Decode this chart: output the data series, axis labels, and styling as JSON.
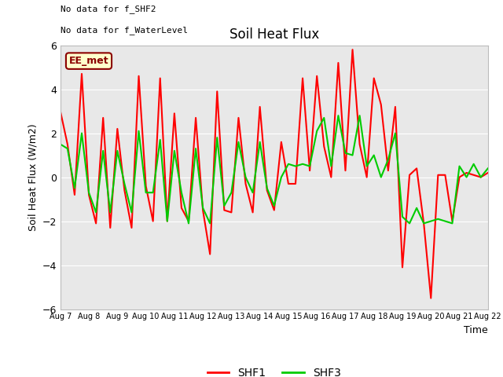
{
  "title": "Soil Heat Flux",
  "ylabel": "Soil Heat Flux (W/m2)",
  "xlabel": "Time",
  "ylim": [
    -6,
    6
  ],
  "background_color": "#e8e8e8",
  "fig_background": "#ffffff",
  "annotation_line1": "No data for f_SHF2",
  "annotation_line2": "No data for f_WaterLevel",
  "legend_box_label": "EE_met",
  "legend_box_color": "#ffffcc",
  "legend_box_edge": "#8B0000",
  "x_tick_labels": [
    "Aug 7",
    "Aug 8",
    "Aug 9",
    "Aug 10",
    "Aug 11",
    "Aug 12",
    "Aug 13",
    "Aug 14",
    "Aug 15",
    "Aug 16",
    "Aug 17",
    "Aug 18",
    "Aug 19",
    "Aug 20",
    "Aug 21",
    "Aug 22"
  ],
  "shf1_color": "#ff0000",
  "shf3_color": "#00cc00",
  "line_width": 1.5,
  "shf1_x": [
    0,
    0.25,
    0.5,
    0.75,
    1.0,
    1.25,
    1.5,
    1.75,
    2.0,
    2.25,
    2.5,
    2.75,
    3.0,
    3.25,
    3.5,
    3.75,
    4.0,
    4.25,
    4.5,
    4.75,
    5.0,
    5.25,
    5.5,
    5.75,
    6.0,
    6.25,
    6.5,
    6.75,
    7.0,
    7.25,
    7.5,
    7.75,
    8.0,
    8.25,
    8.5,
    8.75,
    9.0,
    9.25,
    9.5,
    9.75,
    10.0,
    10.25,
    10.5,
    10.75,
    11.0,
    11.25,
    11.5,
    11.75,
    12.0,
    12.25,
    12.5,
    12.75,
    13.0,
    13.25,
    13.5,
    13.75,
    14.0,
    14.25,
    14.5,
    14.75,
    15.0
  ],
  "shf1_y": [
    3.0,
    1.5,
    -0.8,
    4.7,
    -0.8,
    -2.1,
    2.7,
    -2.3,
    2.2,
    -0.6,
    -2.3,
    4.6,
    -0.4,
    -2.0,
    4.5,
    -2.0,
    2.9,
    -1.4,
    -2.0,
    2.7,
    -1.5,
    -3.5,
    3.9,
    -1.5,
    -1.6,
    2.7,
    -0.3,
    -1.6,
    3.2,
    -0.6,
    -1.5,
    1.6,
    -0.3,
    -0.3,
    4.5,
    0.3,
    4.6,
    1.4,
    0.0,
    5.2,
    0.3,
    5.8,
    1.5,
    0.0,
    4.5,
    3.3,
    0.3,
    3.2,
    -4.1,
    0.1,
    0.4,
    -2.1,
    -5.5,
    0.1,
    0.1,
    -2.0,
    0.0,
    0.2,
    0.1,
    0.0,
    0.2
  ],
  "shf3_x": [
    0,
    0.25,
    0.5,
    0.75,
    1.0,
    1.25,
    1.5,
    1.75,
    2.0,
    2.25,
    2.5,
    2.75,
    3.0,
    3.25,
    3.5,
    3.75,
    4.0,
    4.25,
    4.5,
    4.75,
    5.0,
    5.25,
    5.5,
    5.75,
    6.0,
    6.25,
    6.5,
    6.75,
    7.0,
    7.25,
    7.5,
    7.75,
    8.0,
    8.25,
    8.5,
    8.75,
    9.0,
    9.25,
    9.5,
    9.75,
    10.0,
    10.25,
    10.5,
    10.75,
    11.0,
    11.25,
    11.5,
    11.75,
    12.0,
    12.25,
    12.5,
    12.75,
    13.0,
    13.25,
    13.5,
    13.75,
    14.0,
    14.25,
    14.5,
    14.75,
    15.0
  ],
  "shf3_y": [
    1.5,
    1.3,
    -0.5,
    2.0,
    -0.7,
    -1.6,
    1.2,
    -1.6,
    1.2,
    -0.3,
    -1.6,
    2.1,
    -0.7,
    -0.7,
    1.7,
    -2.0,
    1.2,
    -0.7,
    -2.1,
    1.3,
    -1.4,
    -2.1,
    1.8,
    -1.3,
    -0.7,
    1.6,
    0.0,
    -0.7,
    1.6,
    -0.5,
    -1.3,
    0.0,
    0.6,
    0.5,
    0.6,
    0.5,
    2.1,
    2.7,
    0.5,
    2.8,
    1.1,
    1.0,
    2.8,
    0.5,
    1.0,
    0.0,
    0.8,
    2.0,
    -1.8,
    -2.1,
    -1.4,
    -2.1,
    -2.0,
    -1.9,
    -2.0,
    -2.1,
    0.5,
    0.0,
    0.6,
    0.0,
    0.4
  ]
}
